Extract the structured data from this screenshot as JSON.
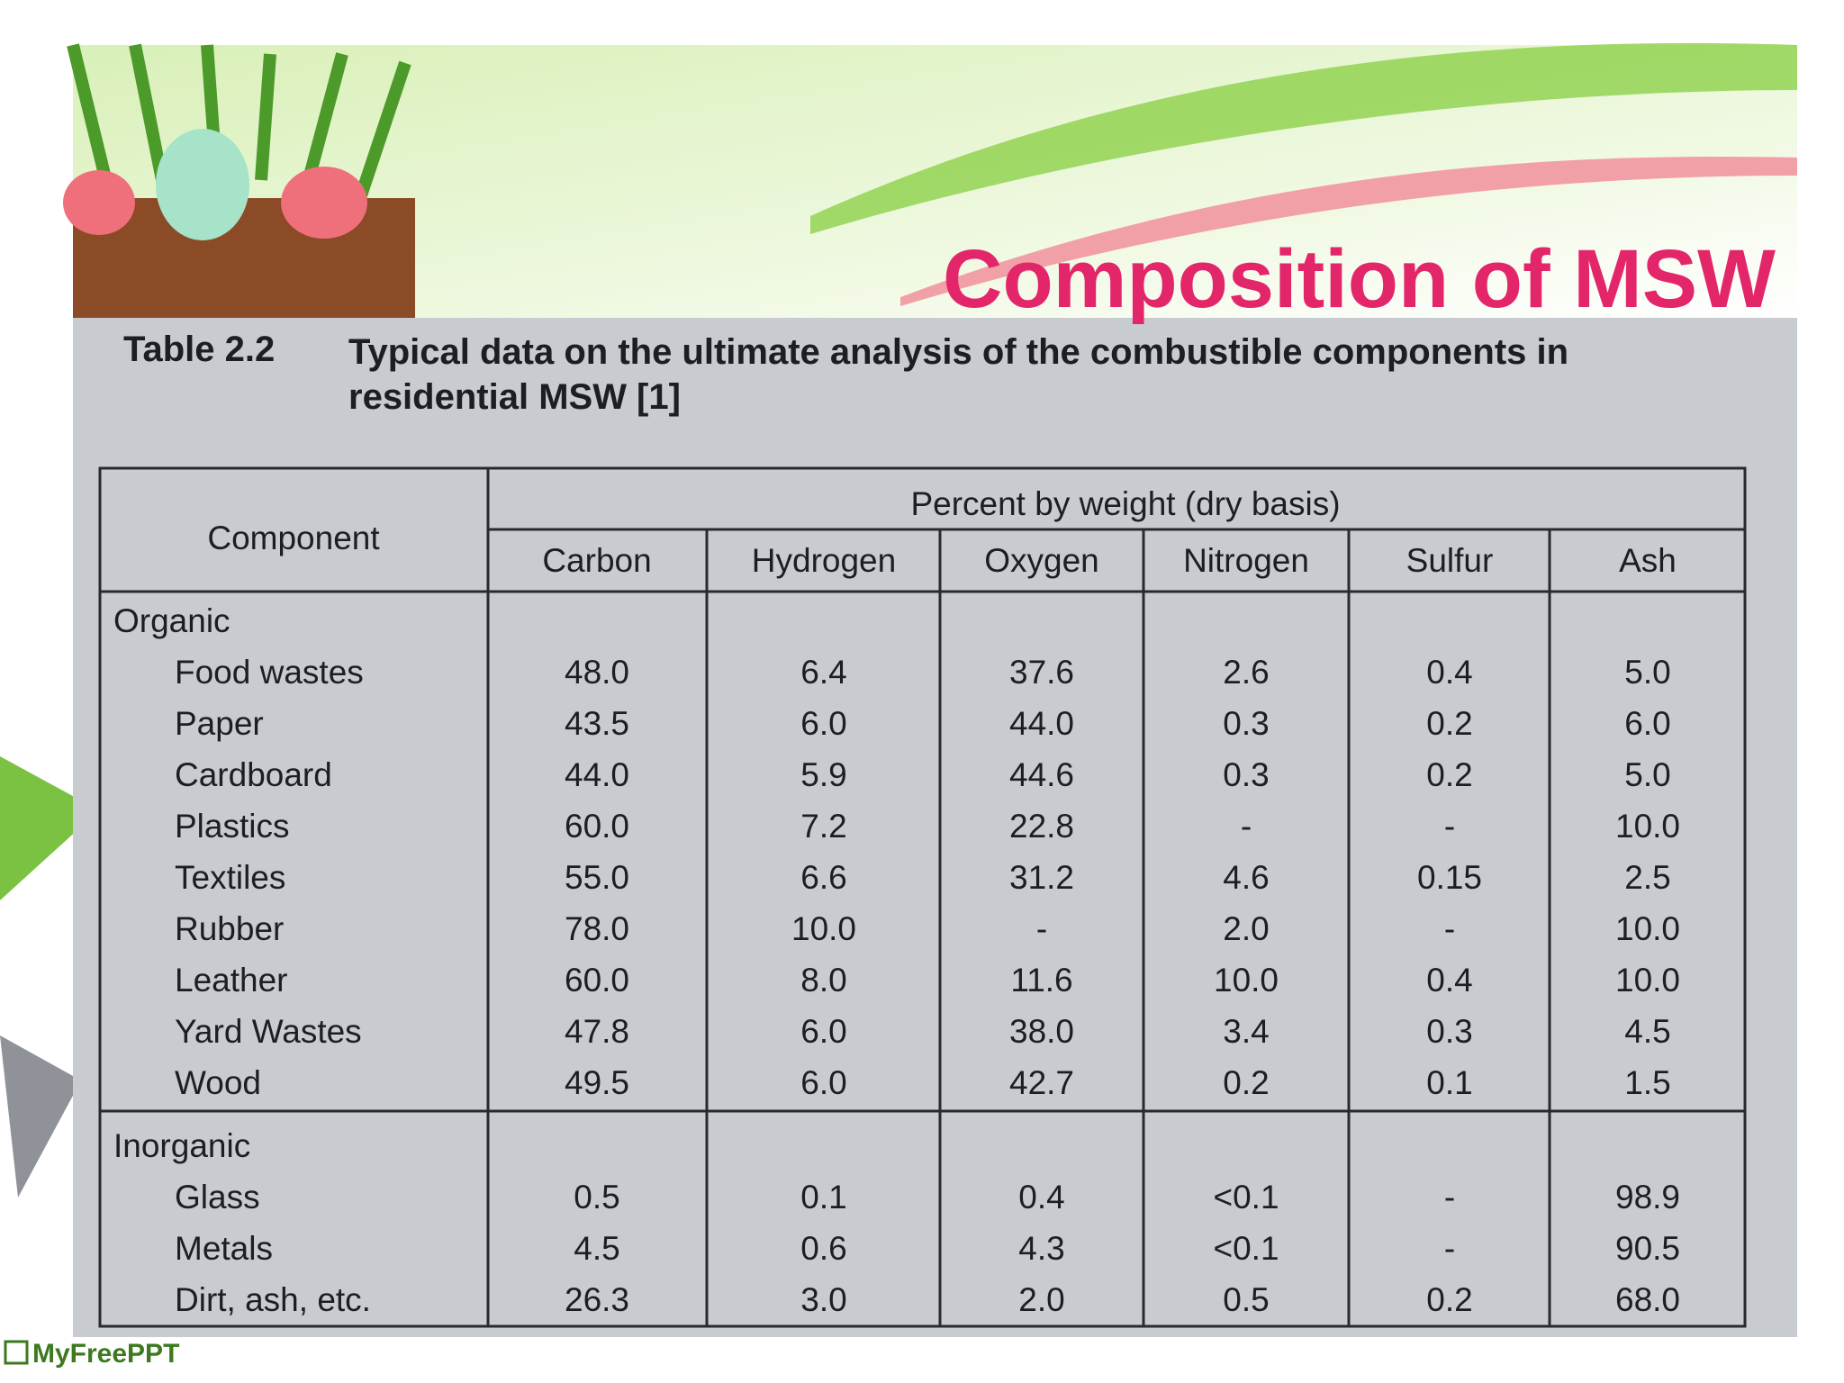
{
  "slide": {
    "title": "Composition of MSW",
    "logo": "MyFreePPT"
  },
  "table": {
    "label": "Table 2.2",
    "caption": "Typical data on the ultimate analysis of the combustible components in residential MSW [1]",
    "header_component": "Component",
    "header_group": "Percent by weight (dry basis)",
    "columns": [
      "Carbon",
      "Hydrogen",
      "Oxygen",
      "Nitrogen",
      "Sulfur",
      "Ash"
    ],
    "groups": [
      {
        "name": "Organic",
        "rows": [
          {
            "name": "Food wastes",
            "values": [
              "48.0",
              "6.4",
              "37.6",
              "2.6",
              "0.4",
              "5.0"
            ]
          },
          {
            "name": "Paper",
            "values": [
              "43.5",
              "6.0",
              "44.0",
              "0.3",
              "0.2",
              "6.0"
            ]
          },
          {
            "name": "Cardboard",
            "values": [
              "44.0",
              "5.9",
              "44.6",
              "0.3",
              "0.2",
              "5.0"
            ]
          },
          {
            "name": "Plastics",
            "values": [
              "60.0",
              "7.2",
              "22.8",
              "-",
              "-",
              "10.0"
            ]
          },
          {
            "name": "Textiles",
            "values": [
              "55.0",
              "6.6",
              "31.2",
              "4.6",
              "0.15",
              "2.5"
            ]
          },
          {
            "name": "Rubber",
            "values": [
              "78.0",
              "10.0",
              "-",
              "2.0",
              "-",
              "10.0"
            ]
          },
          {
            "name": "Leather",
            "values": [
              "60.0",
              "8.0",
              "11.6",
              "10.0",
              "0.4",
              "10.0"
            ]
          },
          {
            "name": "Yard Wastes",
            "values": [
              "47.8",
              "6.0",
              "38.0",
              "3.4",
              "0.3",
              "4.5"
            ]
          },
          {
            "name": "Wood",
            "values": [
              "49.5",
              "6.0",
              "42.7",
              "0.2",
              "0.1",
              "1.5"
            ]
          }
        ]
      },
      {
        "name": "Inorganic",
        "rows": [
          {
            "name": "Glass",
            "values": [
              "0.5",
              "0.1",
              "0.4",
              "<0.1",
              "-",
              "98.9"
            ]
          },
          {
            "name": "Metals",
            "values": [
              "4.5",
              "0.6",
              "4.3",
              "<0.1",
              "-",
              "90.5"
            ]
          },
          {
            "name": "Dirt, ash, etc.",
            "values": [
              "26.3",
              "3.0",
              "2.0",
              "0.5",
              "0.2",
              "68.0"
            ]
          }
        ]
      }
    ]
  }
}
